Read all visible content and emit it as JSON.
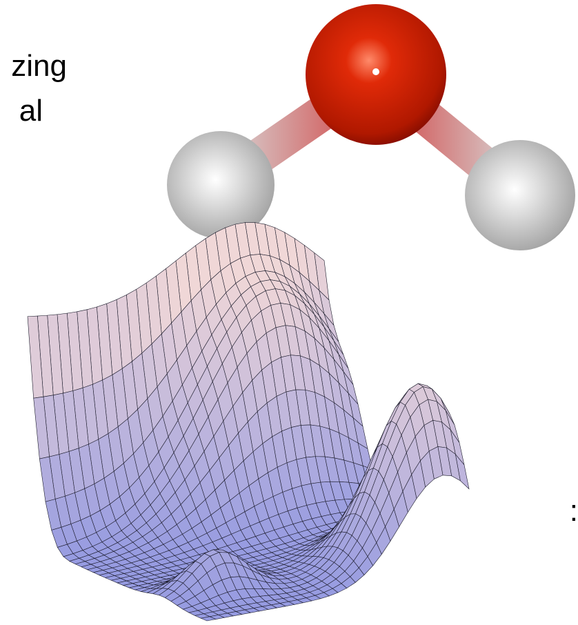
{
  "texts": [
    "zing",
    "al",
    ":"
  ]
}
